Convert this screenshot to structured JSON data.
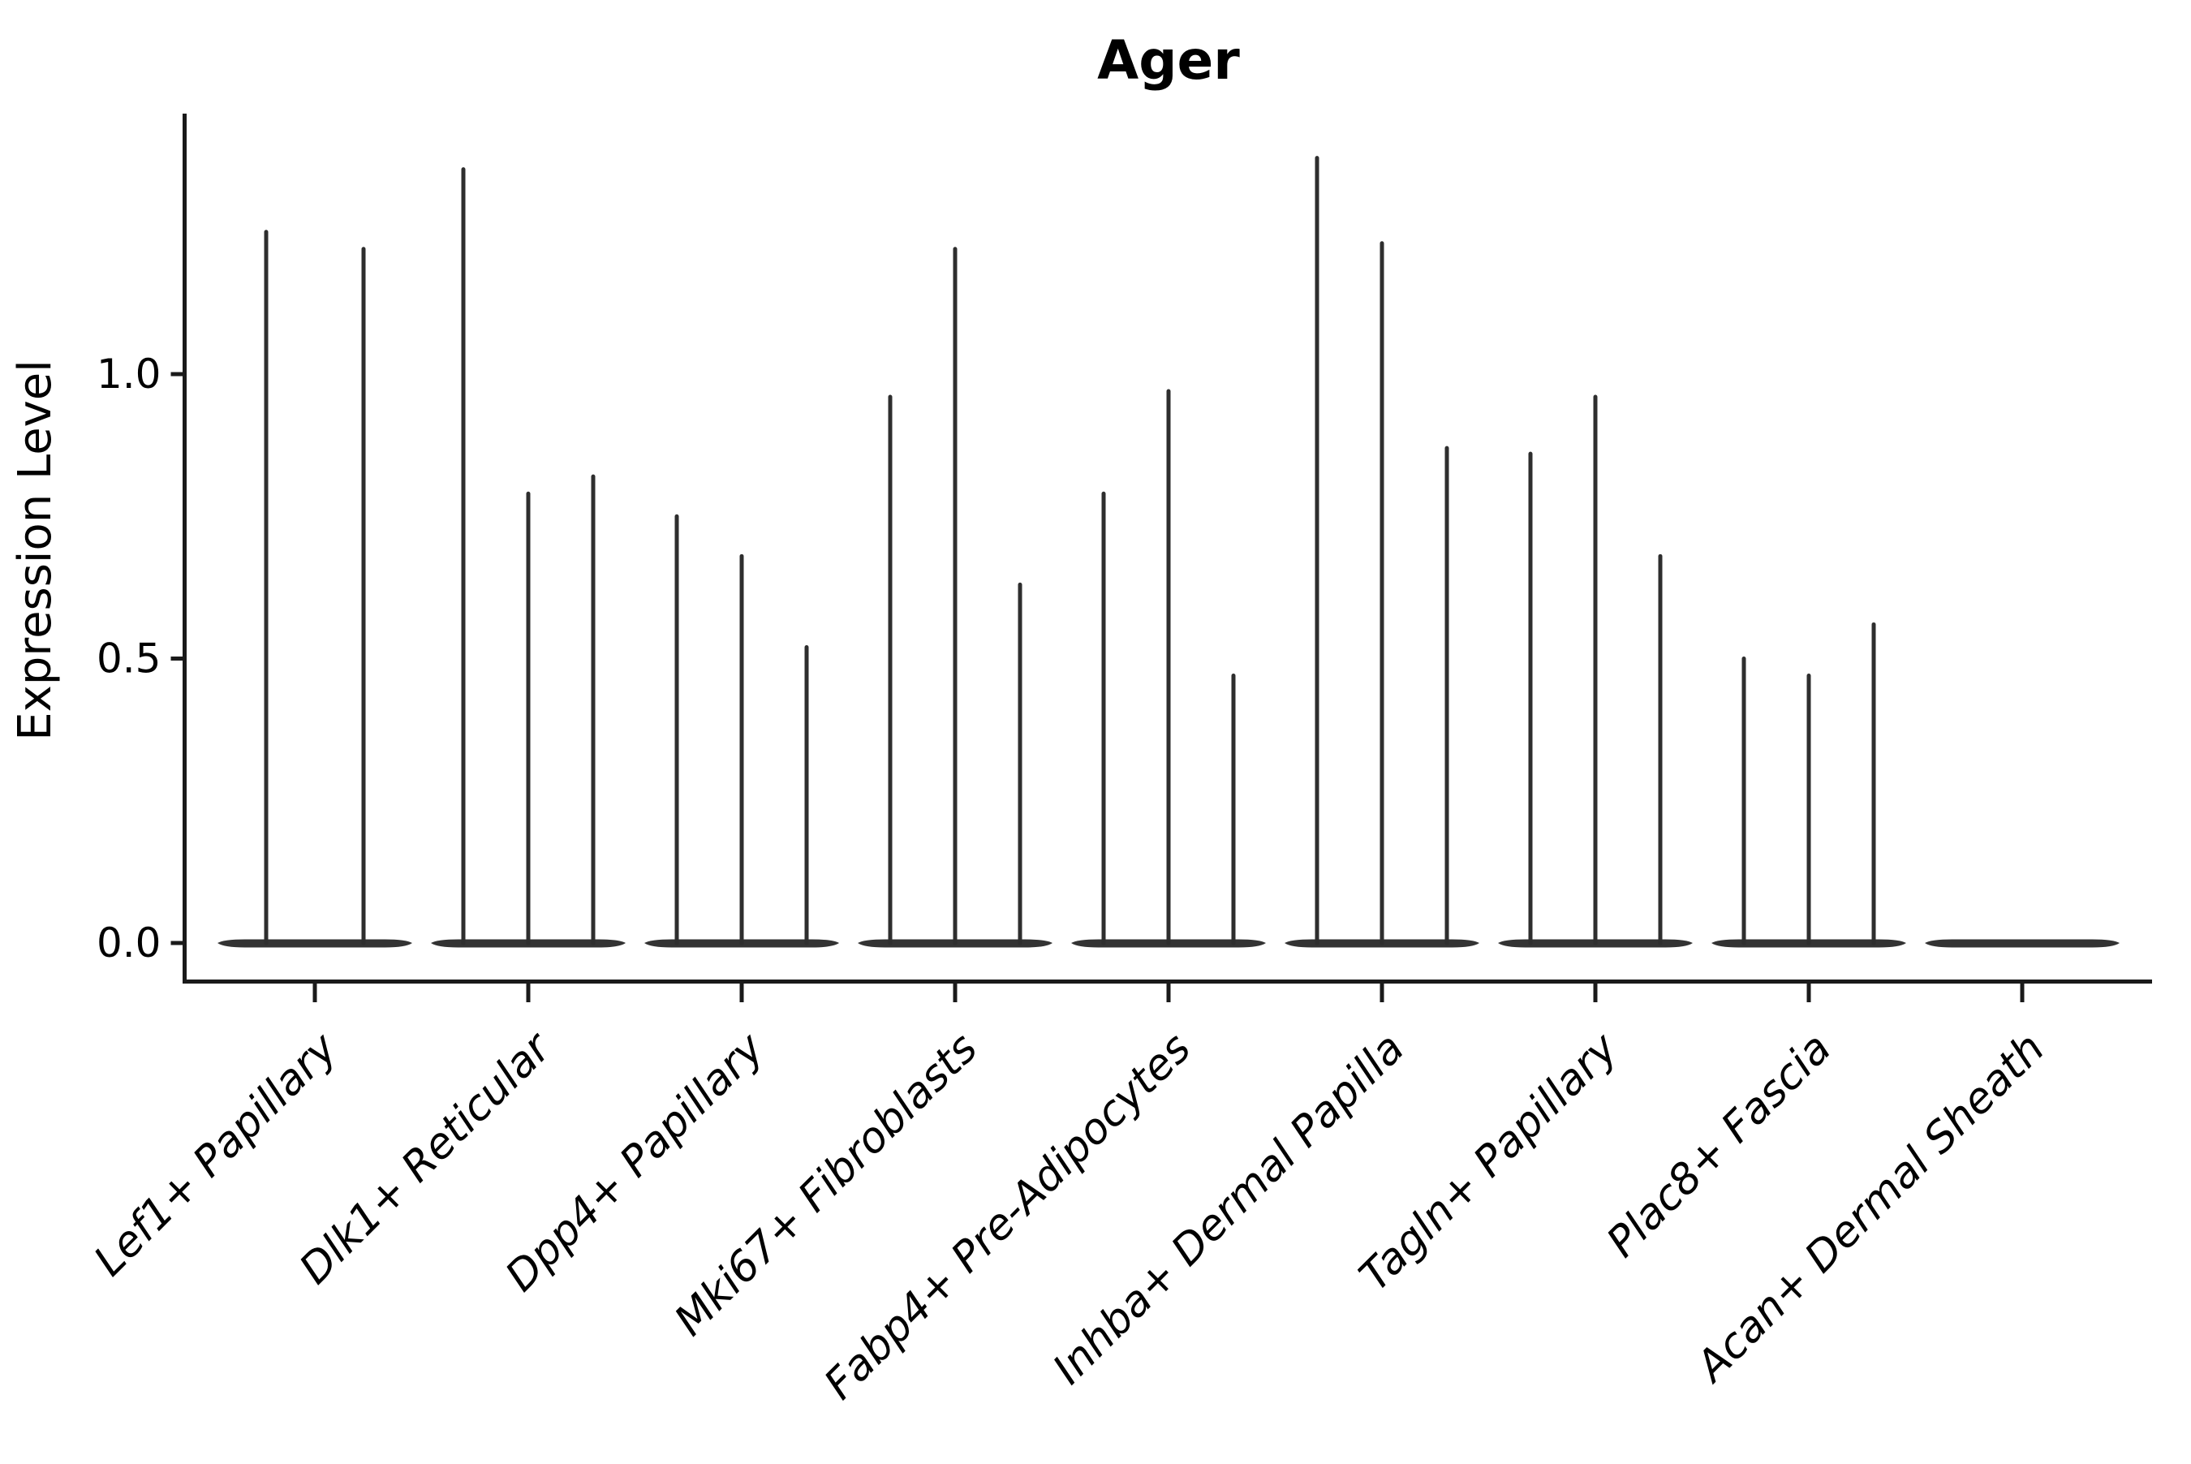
{
  "title": "Ager",
  "axes": {
    "ylabel": "Expression Level",
    "xlabel": ""
  },
  "chart_data": {
    "type": "violin",
    "title": "Ager",
    "xlabel": "",
    "ylabel": "Expression Level",
    "ylim": [
      -0.07,
      1.46
    ],
    "grid": false,
    "legend": null,
    "ytick_values": [
      0.0,
      0.5,
      1.0
    ],
    "ytick_labels": [
      "0.0",
      "0.5",
      "1.0"
    ],
    "categories": [
      "Lef1+ Papillary",
      "Dlk1+ Reticular",
      "Dpp4+ Papillary",
      "Mki67+ Fibroblasts",
      "Fabp4+ Pre-Adipocytes",
      "Inhba+ Dermal Papilla",
      "Tagln+ Papillary",
      "Plac8+ Fascia",
      "Acan+ Dermal Sheath"
    ],
    "groups": [
      {
        "label": "Lef1+ Papillary",
        "violin_peaks": [
          1.25,
          1.22
        ]
      },
      {
        "label": "Dlk1+ Reticular",
        "violin_peaks": [
          1.36,
          0.79,
          0.82
        ]
      },
      {
        "label": "Dpp4+ Papillary",
        "violin_peaks": [
          0.75,
          0.68,
          0.52
        ]
      },
      {
        "label": "Mki67+ Fibroblasts",
        "violin_peaks": [
          0.96,
          1.22,
          0.63
        ]
      },
      {
        "label": "Fabp4+ Pre-Adipocytes",
        "violin_peaks": [
          0.79,
          0.97,
          0.47
        ]
      },
      {
        "label": "Inhba+ Dermal Papilla",
        "violin_peaks": [
          1.38,
          1.23,
          0.87
        ]
      },
      {
        "label": "Tagln+ Papillary",
        "violin_peaks": [
          0.86,
          0.96,
          0.68
        ]
      },
      {
        "label": "Plac8+ Fascia",
        "violin_peaks": [
          0.5,
          0.47,
          0.56
        ]
      },
      {
        "label": "Acan+ Dermal Sheath",
        "violin_peaks": [
          0.0,
          0.0,
          0.0
        ]
      }
    ],
    "style": {
      "background": "#ffffff",
      "violin_color": "#2e2e2e",
      "violin_body_color": "#333333",
      "axis_color": "#1a1a1a",
      "text_color": "#000000"
    }
  }
}
